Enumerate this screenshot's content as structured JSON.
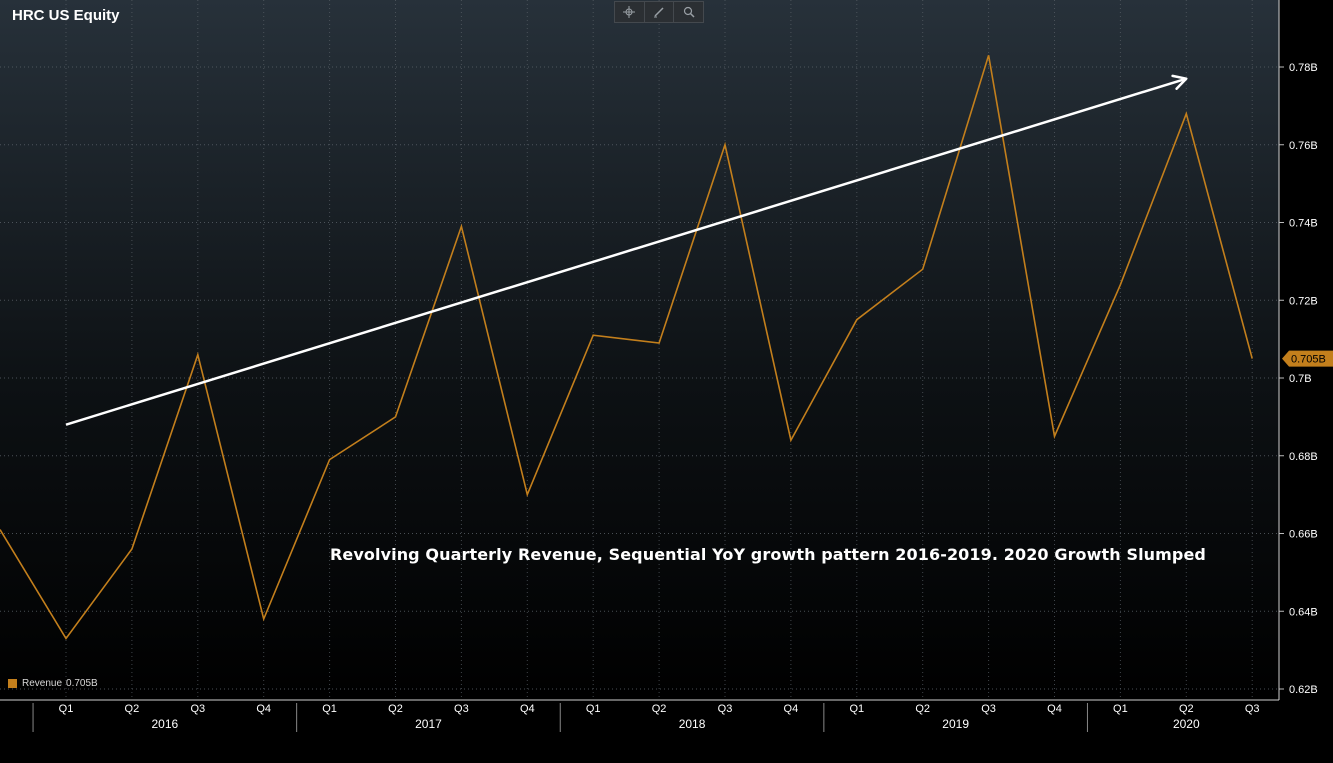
{
  "header": {
    "title": "HRC US Equity"
  },
  "toolbar": {
    "buttons": [
      {
        "icon": "crosshair-icon"
      },
      {
        "icon": "pencil-icon"
      },
      {
        "icon": "zoom-icon"
      }
    ]
  },
  "annotation": "Revolving Quarterly Revenue, Sequential YoY growth pattern 2016-2019. 2020 Growth Slumped",
  "legend": {
    "label": "Revenue",
    "value": "0.705B"
  },
  "colors": {
    "line": "#c37f1c",
    "trend_arrow": "#ffffff",
    "grid": "#5a6168",
    "bg_top": "#27313a",
    "bg_bottom": "#000000"
  },
  "chart_data": {
    "type": "line",
    "title": "HRC US Equity",
    "xlabel": "",
    "ylabel": "",
    "ylim": [
      0.62,
      0.79
    ],
    "y_ticks": [
      "0.62B",
      "0.64B",
      "0.66B",
      "0.68B",
      "0.7B",
      "0.72B",
      "0.74B",
      "0.76B",
      "0.78B"
    ],
    "y_tick_values": [
      0.62,
      0.64,
      0.66,
      0.68,
      0.7,
      0.72,
      0.74,
      0.76,
      0.78
    ],
    "categories": [
      "Q1",
      "Q2",
      "Q3",
      "Q4",
      "Q1",
      "Q2",
      "Q3",
      "Q4",
      "Q1",
      "Q2",
      "Q3",
      "Q4",
      "Q1",
      "Q2",
      "Q3",
      "Q4",
      "Q1",
      "Q2",
      "Q3"
    ],
    "years": [
      {
        "label": "2016",
        "first_quarter_index": 0
      },
      {
        "label": "2017",
        "first_quarter_index": 4
      },
      {
        "label": "2018",
        "first_quarter_index": 8
      },
      {
        "label": "2019",
        "first_quarter_index": 12
      },
      {
        "label": "2020",
        "first_quarter_index": 16
      }
    ],
    "leading_value": 0.661,
    "series": [
      {
        "name": "Revenue",
        "values": [
          0.633,
          0.656,
          0.706,
          0.638,
          0.679,
          0.69,
          0.739,
          0.67,
          0.711,
          0.709,
          0.76,
          0.684,
          0.715,
          0.728,
          0.783,
          0.685,
          0.724,
          0.768,
          0.705
        ]
      }
    ],
    "last_value_label": "0.705B",
    "trend_arrow": {
      "from": {
        "x_index": 0,
        "y": 0.688
      },
      "to": {
        "x_index": 17,
        "y": 0.777
      }
    },
    "grid": true,
    "legend_position": "bottom-left"
  }
}
